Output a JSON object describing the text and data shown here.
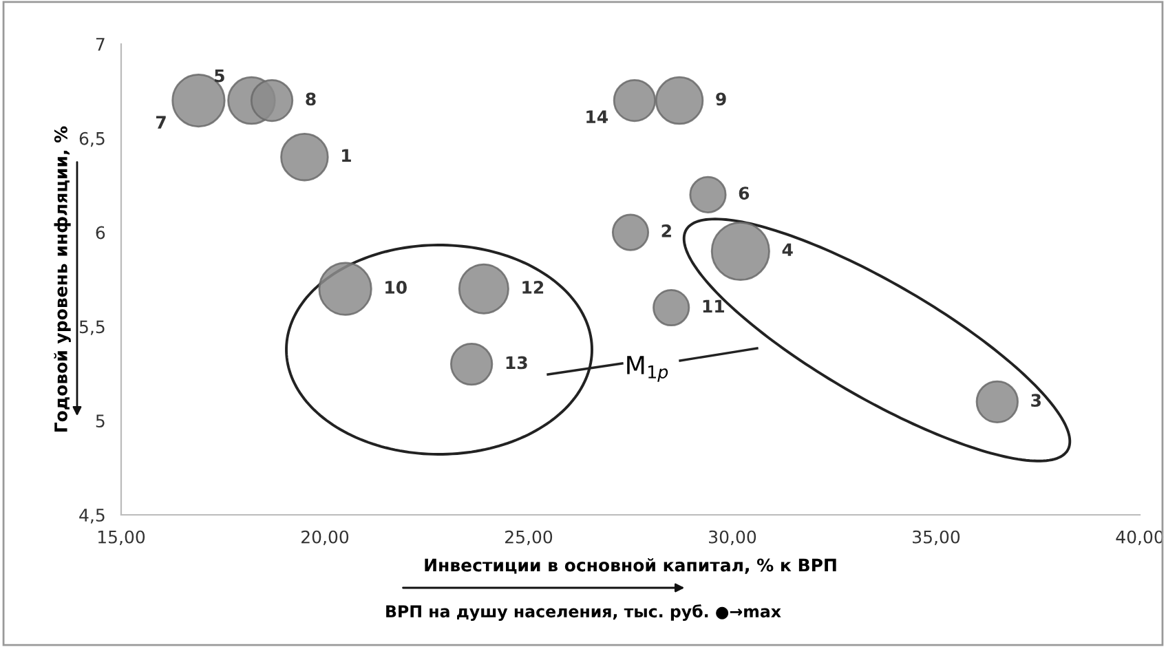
{
  "chart_data": {
    "type": "bubble",
    "xlabel": "Инвестиции в основной капитал, % к ВРП",
    "ylabel": "Годовой уровень инфляции, %",
    "annotations": [
      "ВРП на душу населения, тыс. руб. ●→max",
      "M$_{1p}$",
      {
        "text": "1",
        "x": 19.5,
        "y": 6.4
      },
      {
        "text": "2",
        "x": 27.5,
        "y": 6.0
      },
      {
        "text": "3",
        "x": 36.5,
        "y": 5.1
      },
      {
        "text": "4",
        "x": 30.2,
        "y": 5.9
      },
      {
        "text": "5",
        "x": 18.2,
        "y": 6.7
      },
      {
        "text": "6",
        "x": 29.4,
        "y": 6.2
      },
      {
        "text": "7",
        "x": 16.9,
        "y": 6.7
      },
      {
        "text": "8",
        "x": 18.7,
        "y": 6.7
      },
      {
        "text": "9",
        "x": 28.7,
        "y": 6.7
      },
      {
        "text": "10",
        "x": 20.5,
        "y": 5.7
      },
      {
        "text": "11",
        "x": 28.5,
        "y": 5.6
      },
      {
        "text": "12",
        "x": 23.9,
        "y": 5.7
      },
      {
        "text": "13",
        "x": 23.6,
        "y": 5.3
      },
      {
        "text": "14",
        "x": 27.6,
        "y": 6.7
      }
    ],
    "series": [
      {
        "color": "#8c8c8c",
        "x": [
          19.5,
          27.5,
          36.5,
          30.2,
          18.2,
          29.4,
          16.9,
          18.7,
          28.7,
          20.5,
          28.5,
          23.9,
          23.6,
          27.6
        ],
        "values": [
          6.4,
          6.0,
          5.1,
          5.9,
          6.7,
          6.2,
          6.7,
          6.7,
          6.7,
          5.7,
          5.6,
          5.7,
          5.3,
          6.7
        ],
        "sizes": [
          0.66,
          0.38,
          0.51,
          1,
          0.66,
          0.38,
          0.82,
          0.51,
          0.66,
          0.82,
          0.38,
          0.73,
          0.51,
          0.51
        ]
      }
    ],
    "xlim": [
      15,
      40
    ],
    "xticks": [
      {
        "value": 15,
        "label": "15,00"
      },
      {
        "value": 20,
        "label": "20,00"
      },
      {
        "value": 25,
        "label": "25,00"
      },
      {
        "value": 30,
        "label": "30,00"
      },
      {
        "value": 35,
        "label": "35,00"
      },
      {
        "value": 40,
        "label": "40,00"
      }
    ],
    "ylim": [
      4.5,
      7
    ],
    "yticks": [
      {
        "value": 4.5,
        "label": "4,5"
      },
      5,
      {
        "value": 5.5,
        "label": "5,5"
      },
      6,
      {
        "value": 6.5,
        "label": "6,5"
      },
      7
    ],
    "grid": false,
    "legend": false
  }
}
